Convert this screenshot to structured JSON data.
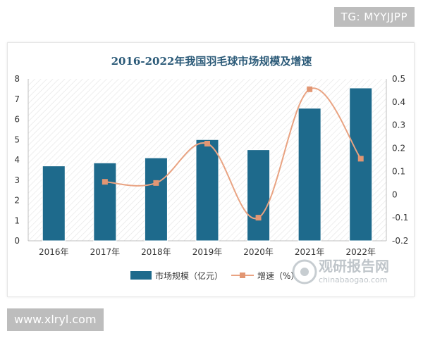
{
  "overlays": {
    "top_tag": "TG: MYYJJPP",
    "bottom_tag": "www.xlryl.com"
  },
  "watermark": {
    "name_cn": "观研报告网",
    "domain": "chinabaogao.com"
  },
  "colors": {
    "bar": "#1e6a8c",
    "line": "#e9a382",
    "marker": "#e29673",
    "title": "#2b5a78",
    "axis_text": "#333333"
  },
  "chart_data": {
    "type": "bar",
    "title": "2016-2022年我国羽毛球市场规模及增速",
    "categories": [
      "2016年",
      "2017年",
      "2018年",
      "2019年",
      "2020年",
      "2021年",
      "2022年"
    ],
    "series": [
      {
        "name": "市场规模（亿元）",
        "type": "bar",
        "axis": "left",
        "values": [
          3.7,
          3.85,
          4.1,
          5.0,
          4.5,
          6.55,
          7.55
        ]
      },
      {
        "name": "增速（%）",
        "type": "line",
        "axis": "right",
        "values": [
          null,
          0.055,
          0.05,
          0.22,
          -0.1,
          0.455,
          0.155
        ]
      }
    ],
    "y_left": {
      "min": 0,
      "max": 8,
      "ticks": [
        "0",
        "1",
        "2",
        "3",
        "4",
        "5",
        "6",
        "7",
        "8"
      ]
    },
    "y_right": {
      "min": -0.2,
      "max": 0.5,
      "ticks": [
        "-0.2",
        "-0.1",
        "0",
        "0.1",
        "0.2",
        "0.3",
        "0.4",
        "0.5"
      ]
    },
    "grid": false,
    "legend_position": "bottom"
  }
}
